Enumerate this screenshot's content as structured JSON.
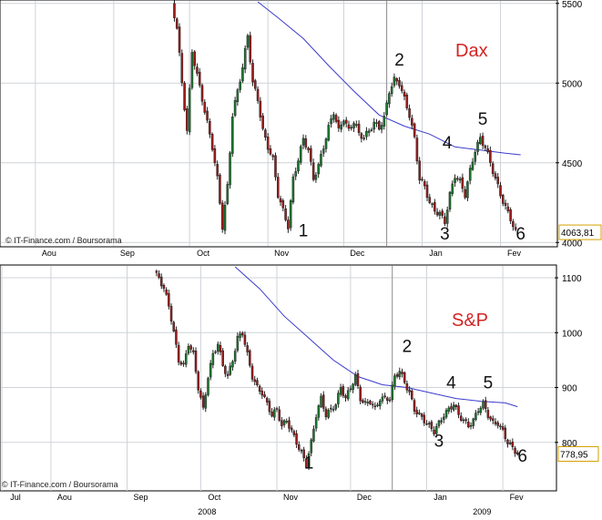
{
  "chart_data": [
    {
      "type": "candlestick",
      "title": "Dax",
      "source": "© IT-Finance.com / Boursorama",
      "last_value_label": "4063,81",
      "last_value": 4063.81,
      "ylim": [
        3990,
        5510
      ],
      "yticks": [
        {
          "value": 4000,
          "label": "4000"
        },
        {
          "value": 4500,
          "label": "4500"
        },
        {
          "value": 5000,
          "label": "5000"
        },
        {
          "value": 5500,
          "label": "5500"
        }
      ],
      "month_ticks": [
        {
          "label": "Aou",
          "day": 14
        },
        {
          "label": "Sep",
          "day": 45
        },
        {
          "label": "Oct",
          "day": 75
        },
        {
          "label": "Nov",
          "day": 106
        },
        {
          "label": "Dec",
          "day": 136
        },
        {
          "label": "Jan",
          "day": 167
        },
        {
          "label": "Fev",
          "day": 198
        }
      ],
      "separator_day": 153,
      "xlim": [
        0,
        218
      ],
      "annotations": [
        {
          "label": "1",
          "day": 120,
          "value": 4040
        },
        {
          "label": "2",
          "day": 158,
          "value": 5110
        },
        {
          "label": "3",
          "day": 176,
          "value": 4020
        },
        {
          "label": "4",
          "day": 177,
          "value": 4590
        },
        {
          "label": "5",
          "day": 191,
          "value": 4740
        },
        {
          "label": "6",
          "day": 206,
          "value": 4020
        }
      ],
      "ma_points": [
        [
          102,
          5510
        ],
        [
          110,
          5410
        ],
        [
          120,
          5280
        ],
        [
          130,
          5110
        ],
        [
          140,
          4950
        ],
        [
          150,
          4800
        ],
        [
          160,
          4730
        ],
        [
          170,
          4680
        ],
        [
          180,
          4600
        ],
        [
          190,
          4580
        ],
        [
          200,
          4560
        ],
        [
          206,
          4550
        ]
      ],
      "anchors": [
        [
          68,
          5500
        ],
        [
          70,
          5350
        ],
        [
          72,
          5000
        ],
        [
          74,
          4700
        ],
        [
          76,
          5200
        ],
        [
          78,
          5050
        ],
        [
          80,
          4900
        ],
        [
          82,
          4750
        ],
        [
          84,
          4600
        ],
        [
          86,
          4400
        ],
        [
          88,
          4100
        ],
        [
          90,
          4350
        ],
        [
          92,
          4800
        ],
        [
          94,
          4950
        ],
        [
          96,
          5100
        ],
        [
          98,
          5300
        ],
        [
          100,
          5000
        ],
        [
          102,
          4900
        ],
        [
          104,
          4700
        ],
        [
          106,
          4600
        ],
        [
          108,
          4520
        ],
        [
          110,
          4300
        ],
        [
          112,
          4200
        ],
        [
          114,
          4100
        ],
        [
          116,
          4400
        ],
        [
          118,
          4520
        ],
        [
          120,
          4650
        ],
        [
          122,
          4580
        ],
        [
          124,
          4400
        ],
        [
          126,
          4480
        ],
        [
          128,
          4600
        ],
        [
          130,
          4720
        ],
        [
          132,
          4820
        ],
        [
          134,
          4700
        ],
        [
          136,
          4780
        ],
        [
          138,
          4700
        ],
        [
          140,
          4760
        ],
        [
          142,
          4680
        ],
        [
          144,
          4660
        ],
        [
          146,
          4700
        ],
        [
          148,
          4750
        ],
        [
          150,
          4720
        ],
        [
          152,
          4780
        ],
        [
          154,
          4950
        ],
        [
          156,
          5020
        ],
        [
          158,
          5000
        ],
        [
          160,
          4900
        ],
        [
          162,
          4800
        ],
        [
          164,
          4650
        ],
        [
          166,
          4400
        ],
        [
          168,
          4350
        ],
        [
          170,
          4250
        ],
        [
          172,
          4200
        ],
        [
          174,
          4180
        ],
        [
          176,
          4130
        ],
        [
          178,
          4300
        ],
        [
          180,
          4420
        ],
        [
          182,
          4380
        ],
        [
          184,
          4300
        ],
        [
          186,
          4450
        ],
        [
          188,
          4580
        ],
        [
          190,
          4650
        ],
        [
          192,
          4600
        ],
        [
          194,
          4500
        ],
        [
          196,
          4400
        ],
        [
          198,
          4300
        ],
        [
          200,
          4220
        ],
        [
          202,
          4150
        ],
        [
          204,
          4064
        ]
      ]
    },
    {
      "type": "candlestick",
      "title": "S&P",
      "source": "© IT-Finance.com / Boursorama",
      "last_value_label": "778,95",
      "last_value": 778.95,
      "ylim": [
        715,
        1120
      ],
      "yticks": [
        {
          "value": 800,
          "label": "800"
        },
        {
          "value": 900,
          "label": "900"
        },
        {
          "value": 1000,
          "label": "1000"
        },
        {
          "value": 1100,
          "label": "1100"
        }
      ],
      "month_ticks": [
        {
          "label": "Jul",
          "day": 0
        },
        {
          "label": "Aou",
          "day": 20
        },
        {
          "label": "Sep",
          "day": 51
        },
        {
          "label": "Oct",
          "day": 81
        },
        {
          "label": "Nov",
          "day": 112
        },
        {
          "label": "Dec",
          "day": 142
        },
        {
          "label": "Jan",
          "day": 173
        },
        {
          "label": "Fev",
          "day": 204
        }
      ],
      "year_labels": [
        {
          "label": "2008",
          "day": 78
        },
        {
          "label": "2009",
          "day": 190
        }
      ],
      "separator_day": 159,
      "xlim": [
        0,
        224
      ],
      "annotations": [
        {
          "label": "1",
          "day": 125,
          "value": 752
        },
        {
          "label": "2",
          "day": 165,
          "value": 965
        },
        {
          "label": "3",
          "day": 178,
          "value": 792
        },
        {
          "label": "4",
          "day": 183,
          "value": 898
        },
        {
          "label": "5",
          "day": 198,
          "value": 898
        },
        {
          "label": "6",
          "day": 212,
          "value": 765
        }
      ],
      "ma_points": [
        [
          95,
          1120
        ],
        [
          105,
          1080
        ],
        [
          115,
          1030
        ],
        [
          125,
          990
        ],
        [
          135,
          950
        ],
        [
          145,
          920
        ],
        [
          155,
          905
        ],
        [
          165,
          900
        ],
        [
          175,
          890
        ],
        [
          185,
          880
        ],
        [
          195,
          875
        ],
        [
          205,
          872
        ],
        [
          210,
          865
        ]
      ],
      "anchors": [
        [
          62,
          1110
        ],
        [
          64,
          1100
        ],
        [
          66,
          1080
        ],
        [
          68,
          1050
        ],
        [
          70,
          1000
        ],
        [
          72,
          950
        ],
        [
          74,
          940
        ],
        [
          76,
          980
        ],
        [
          78,
          960
        ],
        [
          80,
          900
        ],
        [
          82,
          860
        ],
        [
          84,
          920
        ],
        [
          86,
          960
        ],
        [
          88,
          980
        ],
        [
          90,
          940
        ],
        [
          92,
          920
        ],
        [
          94,
          950
        ],
        [
          96,
          990
        ],
        [
          98,
          1000
        ],
        [
          100,
          960
        ],
        [
          102,
          920
        ],
        [
          104,
          900
        ],
        [
          106,
          890
        ],
        [
          108,
          870
        ],
        [
          110,
          850
        ],
        [
          112,
          860
        ],
        [
          114,
          830
        ],
        [
          116,
          840
        ],
        [
          118,
          820
        ],
        [
          120,
          800
        ],
        [
          122,
          780
        ],
        [
          124,
          760
        ],
        [
          126,
          800
        ],
        [
          128,
          850
        ],
        [
          130,
          880
        ],
        [
          132,
          850
        ],
        [
          134,
          860
        ],
        [
          136,
          870
        ],
        [
          138,
          900
        ],
        [
          140,
          880
        ],
        [
          142,
          900
        ],
        [
          144,
          920
        ],
        [
          146,
          880
        ],
        [
          148,
          870
        ],
        [
          150,
          875
        ],
        [
          152,
          860
        ],
        [
          154,
          880
        ],
        [
          156,
          880
        ],
        [
          158,
          880
        ],
        [
          160,
          920
        ],
        [
          162,
          930
        ],
        [
          164,
          910
        ],
        [
          166,
          890
        ],
        [
          168,
          860
        ],
        [
          170,
          850
        ],
        [
          172,
          840
        ],
        [
          174,
          830
        ],
        [
          176,
          820
        ],
        [
          178,
          835
        ],
        [
          180,
          850
        ],
        [
          182,
          860
        ],
        [
          184,
          870
        ],
        [
          186,
          850
        ],
        [
          188,
          840
        ],
        [
          190,
          830
        ],
        [
          192,
          840
        ],
        [
          194,
          860
        ],
        [
          196,
          870
        ],
        [
          198,
          850
        ],
        [
          200,
          835
        ],
        [
          202,
          835
        ],
        [
          204,
          820
        ],
        [
          206,
          800
        ],
        [
          208,
          790
        ],
        [
          210,
          779
        ]
      ]
    }
  ],
  "colors": {
    "bull": "#1a7a2e",
    "bear": "#a01a1a",
    "ma": "#3b3bcc",
    "title": "#d42424",
    "grid": "#cfd3d8",
    "axis": "#000000",
    "tag_border": "#d4a000",
    "separator": "#8c8c8c"
  }
}
